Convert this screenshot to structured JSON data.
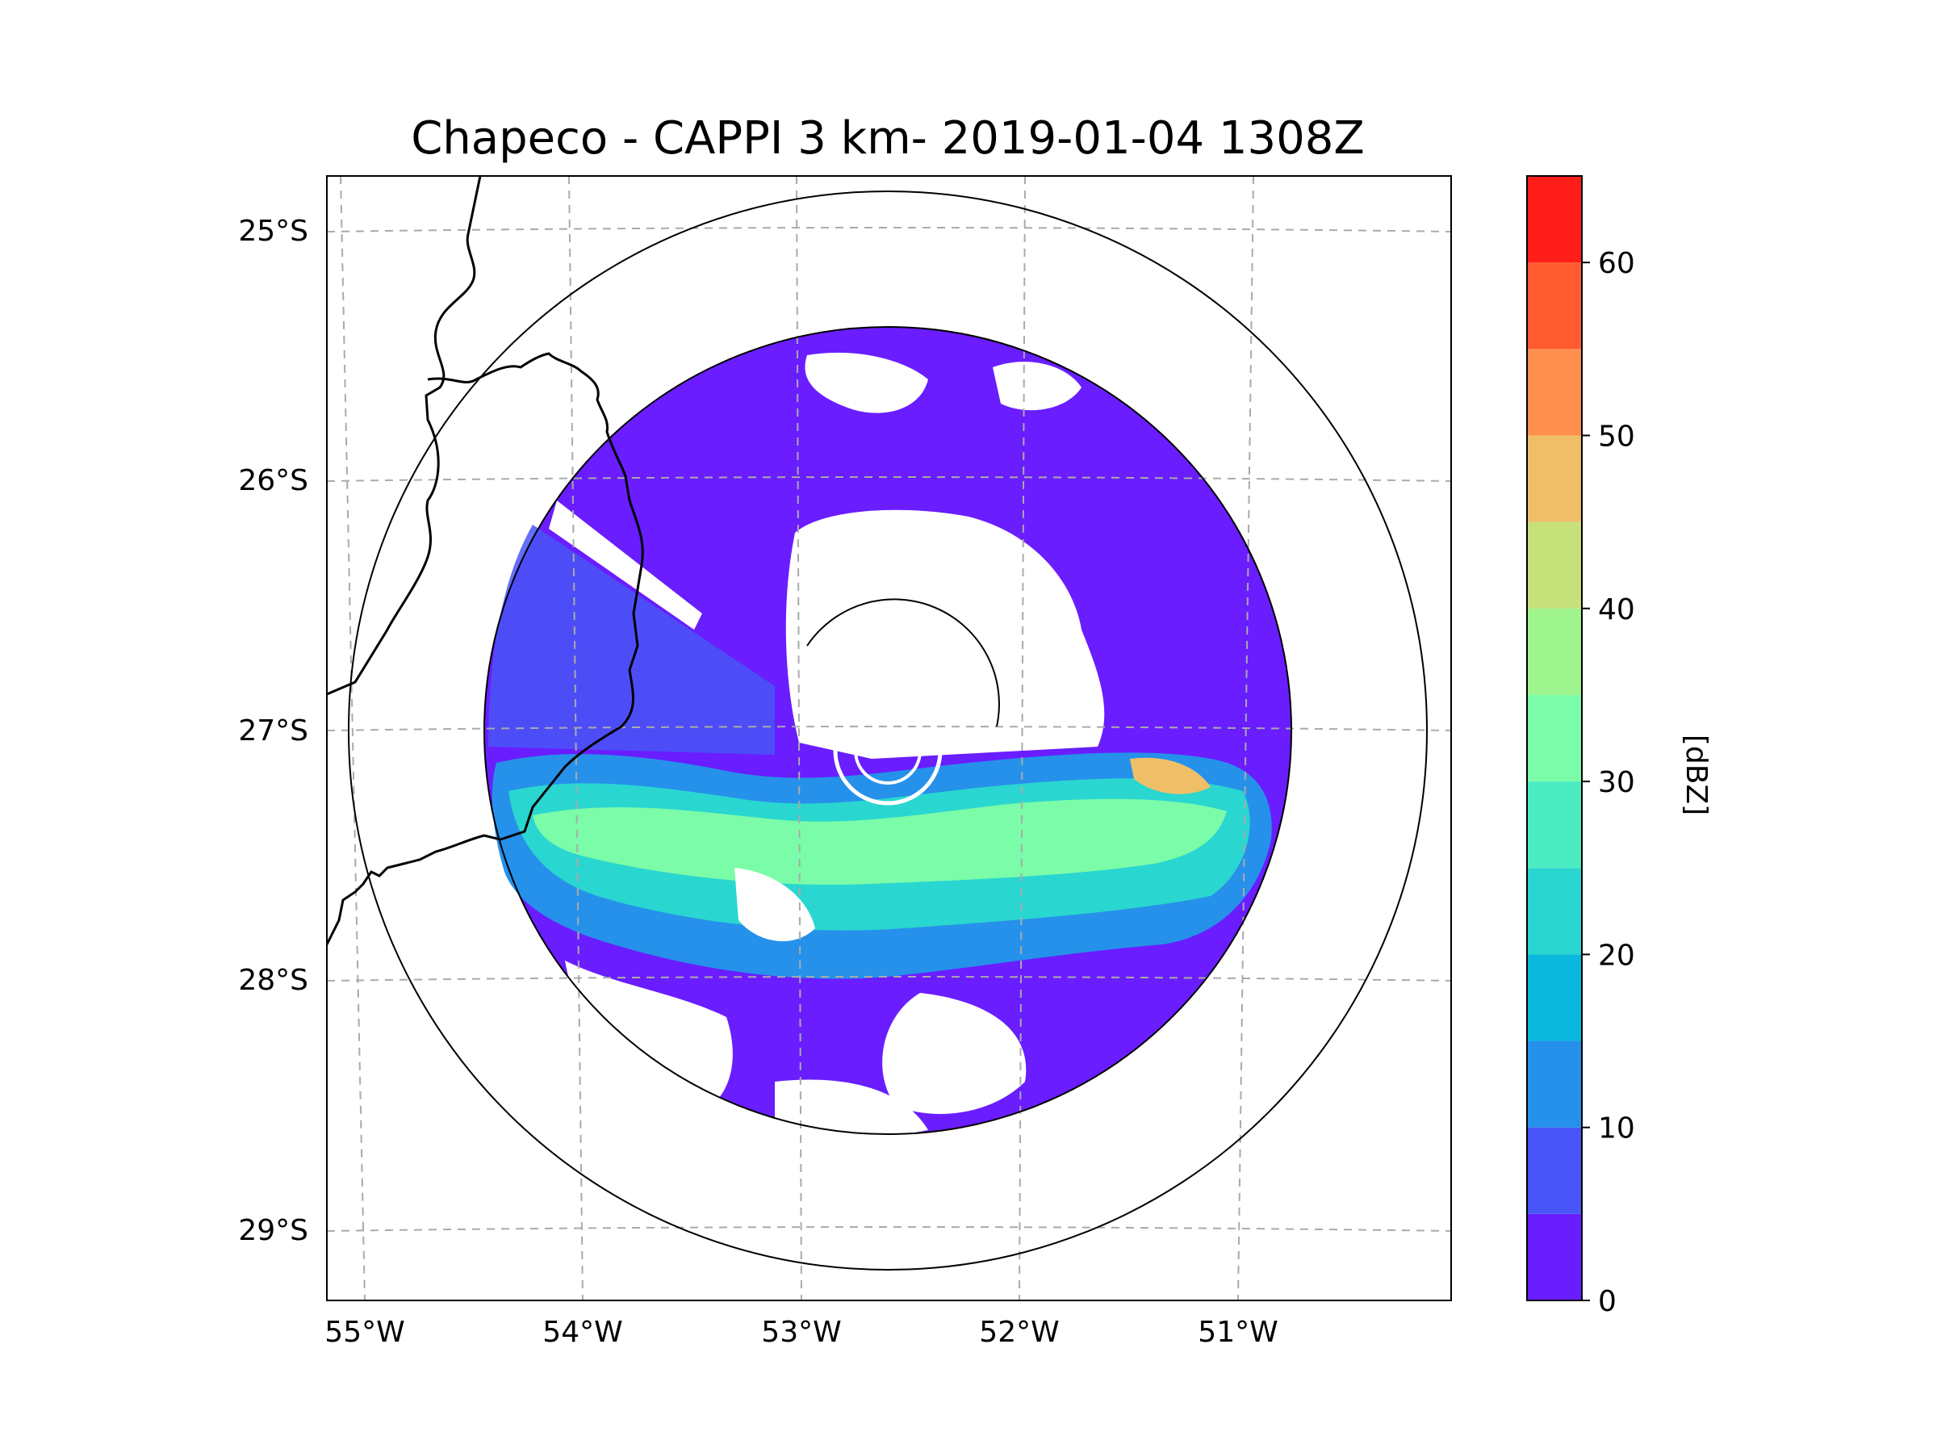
{
  "title": "Chapeco - CAPPI 3 km- 2019-01-04 1308Z",
  "map": {
    "lat_labels": [
      "25°S",
      "26°S",
      "27°S",
      "28°S",
      "29°S"
    ],
    "lon_labels": [
      "55°W",
      "54°W",
      "53°W",
      "52°W",
      "51°W"
    ],
    "lat_values": [
      -25,
      -26,
      -27,
      -28,
      -29
    ],
    "lon_values": [
      -55,
      -54,
      -53,
      -52,
      -51
    ],
    "radar_center": {
      "lat": -27.03,
      "lon": -52.6
    }
  },
  "colorbar": {
    "label": "[dBZ]",
    "tick_labels": [
      "0",
      "10",
      "20",
      "30",
      "40",
      "50",
      "60"
    ],
    "range": [
      0,
      65
    ],
    "step": 5,
    "colors": [
      "#6a1dff",
      "#4856f7",
      "#2591ea",
      "#0ab7dd",
      "#2ad6d0",
      "#4cecc3",
      "#7bfca8",
      "#9ff58d",
      "#c6e07a",
      "#efbf68",
      "#ff8f4d",
      "#ff5b31",
      "#ff1d1a"
    ]
  }
}
